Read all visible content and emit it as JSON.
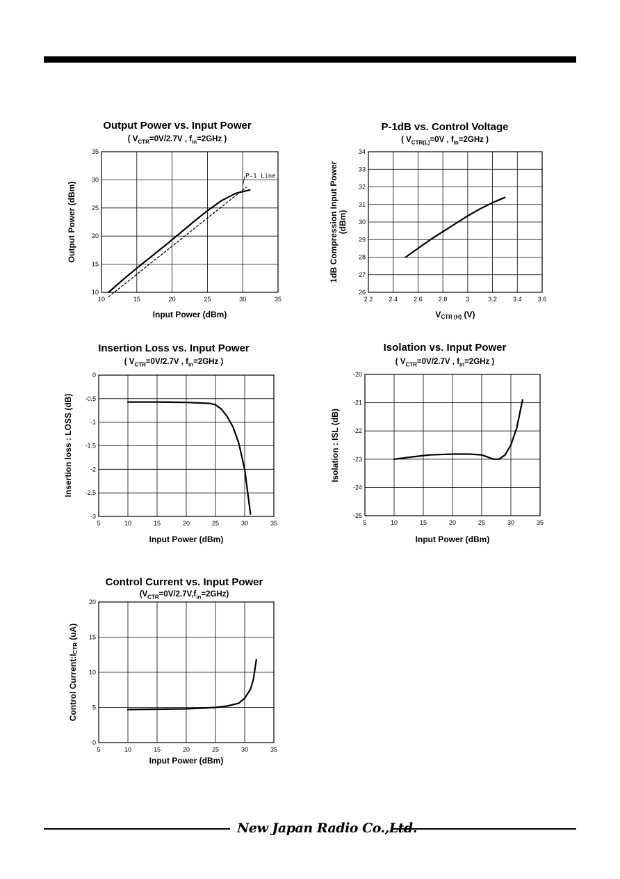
{
  "company_logo": "New Japan Radio Co.,Ltd.",
  "chart_data": [
    {
      "type": "line",
      "title": "Output Power vs. Input Power",
      "subtitle": "( VCTR=0V/2.7V , fin=2GHz )",
      "xlabel": "Input Power (dBm)",
      "ylabel": "Output Power (dBm)",
      "xlim": [
        10,
        35
      ],
      "ylim": [
        10,
        35
      ],
      "xticks": [
        10,
        15,
        20,
        25,
        30,
        35
      ],
      "yticks": [
        10,
        15,
        20,
        25,
        30,
        35
      ],
      "grid": true,
      "annotation": "P-1 Line",
      "series": [
        {
          "x": [
            11,
            13,
            15,
            17,
            19,
            21,
            23,
            25,
            27,
            29,
            31
          ],
          "y": [
            10,
            12.2,
            14.3,
            16.3,
            18.3,
            20.4,
            22.5,
            24.5,
            26.3,
            27.6,
            28.2
          ],
          "dash": false
        },
        {
          "name": "P-1 Line",
          "x": [
            11,
            13,
            15,
            17,
            19,
            21,
            23,
            25,
            27,
            29,
            30.5
          ],
          "y": [
            9.2,
            11.2,
            13.2,
            15.2,
            17.2,
            19.2,
            21.2,
            23.2,
            25.2,
            27.2,
            28.7
          ],
          "dash": true
        }
      ]
    },
    {
      "type": "line",
      "title": "P-1dB vs. Control Voltage",
      "subtitle": "( VCTR(L)=0V , fin=2GHz )",
      "xlabel": "VCTR (H) (V)",
      "ylabel": "1dB Compression Input Power (dBm)",
      "xlim": [
        2.2,
        3.6
      ],
      "ylim": [
        26,
        34
      ],
      "xticks": [
        2.2,
        2.4,
        2.6,
        2.8,
        3,
        3.2,
        3.4,
        3.6
      ],
      "yticks": [
        26,
        27,
        28,
        29,
        30,
        31,
        32,
        33,
        34
      ],
      "grid": true,
      "series": [
        {
          "x": [
            2.5,
            2.6,
            2.7,
            2.8,
            2.9,
            3.0,
            3.1,
            3.2,
            3.3
          ],
          "y": [
            28.0,
            28.5,
            29.0,
            29.45,
            29.9,
            30.35,
            30.75,
            31.1,
            31.4
          ],
          "dash": false
        }
      ]
    },
    {
      "type": "line",
      "title": "Insertion Loss vs. Input Power",
      "subtitle": "( VCTR=0V/2.7V , fin=2GHz )",
      "xlabel": "Input Power (dBm)",
      "ylabel": "Insertion loss : LOSS (dB)",
      "xlim": [
        5,
        35
      ],
      "ylim": [
        -3,
        0
      ],
      "xticks": [
        5,
        10,
        15,
        20,
        25,
        30,
        35
      ],
      "yticks": [
        0,
        -0.5,
        -1,
        -1.5,
        -2,
        -2.5,
        -3
      ],
      "grid": true,
      "series": [
        {
          "x": [
            10,
            15,
            20,
            24,
            25,
            26,
            27,
            28,
            29,
            30,
            31
          ],
          "y": [
            -0.57,
            -0.57,
            -0.58,
            -0.6,
            -0.63,
            -0.72,
            -0.88,
            -1.1,
            -1.45,
            -2.0,
            -2.95
          ],
          "dash": false
        }
      ]
    },
    {
      "type": "line",
      "title": "Isolation vs. Input Power",
      "subtitle": "( VCTR=0V/2.7V , fin=2GHz )",
      "xlabel": "Input Power (dBm)",
      "ylabel": "Isolation : ISL (dB)",
      "xlim": [
        5,
        35
      ],
      "ylim": [
        -25,
        -20
      ],
      "xticks": [
        5,
        10,
        15,
        20,
        25,
        30,
        35
      ],
      "yticks": [
        -20,
        -21,
        -22,
        -23,
        -24,
        -25
      ],
      "grid": true,
      "series": [
        {
          "x": [
            10,
            13,
            16,
            20,
            23,
            25,
            26,
            27,
            28,
            29,
            30,
            31,
            32
          ],
          "y": [
            -23.0,
            -22.92,
            -22.85,
            -22.82,
            -22.82,
            -22.85,
            -22.92,
            -23.0,
            -23.0,
            -22.85,
            -22.5,
            -21.9,
            -20.9
          ],
          "dash": false
        }
      ]
    },
    {
      "type": "line",
      "title": "Control Current vs. Input Power",
      "subtitle": "(VCTR=0V/2.7V,fin=2GHz)",
      "xlabel": "Input Power (dBm)",
      "ylabel": "Control Current:ICTR (uA)",
      "xlim": [
        5,
        35
      ],
      "ylim": [
        0,
        20
      ],
      "xticks": [
        5,
        10,
        15,
        20,
        25,
        30,
        35
      ],
      "yticks": [
        0,
        5,
        10,
        15,
        20
      ],
      "grid": true,
      "series": [
        {
          "x": [
            10,
            15,
            20,
            25,
            27,
            29,
            30,
            31,
            31.5,
            32
          ],
          "y": [
            4.7,
            4.75,
            4.8,
            5.0,
            5.2,
            5.6,
            6.3,
            7.6,
            9.0,
            11.8
          ],
          "dash": false
        }
      ]
    }
  ]
}
